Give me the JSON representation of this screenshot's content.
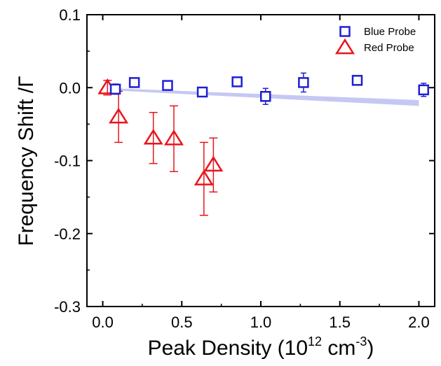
{
  "chart_data": {
    "type": "scatter",
    "xlabel": "Peak Density (10",
    "xlabel_sup1": "12",
    "xlabel_mid": " cm",
    "xlabel_sup2": "-3",
    "xlabel_end": ")",
    "ylabel": "Frequency Shift  /Γ",
    "xlim": [
      -0.1,
      2.1
    ],
    "ylim": [
      -0.3,
      0.1
    ],
    "x_ticks": [
      0.0,
      0.5,
      1.0,
      1.5,
      2.0
    ],
    "x_tick_labels": [
      "0.0",
      "0.5",
      "1.0",
      "1.5",
      "2.0"
    ],
    "y_ticks": [
      -0.3,
      -0.2,
      -0.1,
      0.0,
      0.1
    ],
    "y_tick_labels": [
      "-0.3",
      "-0.2",
      "-0.1",
      "0.0",
      "0.1"
    ],
    "legend_position": "top-right",
    "band": {
      "color": "#c5c8f2",
      "x": [
        0.08,
        2.0
      ],
      "upper": [
        -0.001,
        -0.017
      ],
      "lower": [
        -0.004,
        -0.025
      ]
    },
    "series": [
      {
        "name": "Blue Probe",
        "marker": "square",
        "color": "#1f1fd4",
        "points": [
          {
            "x": 0.08,
            "y": -0.002,
            "err": 0.007
          },
          {
            "x": 0.2,
            "y": 0.007,
            "err": 0.005
          },
          {
            "x": 0.41,
            "y": 0.003,
            "err": 0.005
          },
          {
            "x": 0.63,
            "y": -0.006,
            "err": 0.004
          },
          {
            "x": 0.85,
            "y": 0.008,
            "err": 0.005
          },
          {
            "x": 1.03,
            "y": -0.012,
            "err": 0.011
          },
          {
            "x": 1.27,
            "y": 0.007,
            "err": 0.013
          },
          {
            "x": 1.61,
            "y": 0.01,
            "err": 0.004
          },
          {
            "x": 2.03,
            "y": -0.003,
            "err": 0.009
          }
        ]
      },
      {
        "name": "Red Probe",
        "marker": "triangle",
        "color": "#e8151b",
        "points": [
          {
            "x": 0.03,
            "y": 0.0,
            "err": 0.01
          },
          {
            "x": 0.1,
            "y": -0.04,
            "err": 0.035
          },
          {
            "x": 0.32,
            "y": -0.069,
            "err": 0.035
          },
          {
            "x": 0.45,
            "y": -0.07,
            "err": 0.045
          },
          {
            "x": 0.64,
            "y": -0.125,
            "err": 0.05
          },
          {
            "x": 0.7,
            "y": -0.106,
            "err": 0.037
          }
        ]
      }
    ]
  }
}
